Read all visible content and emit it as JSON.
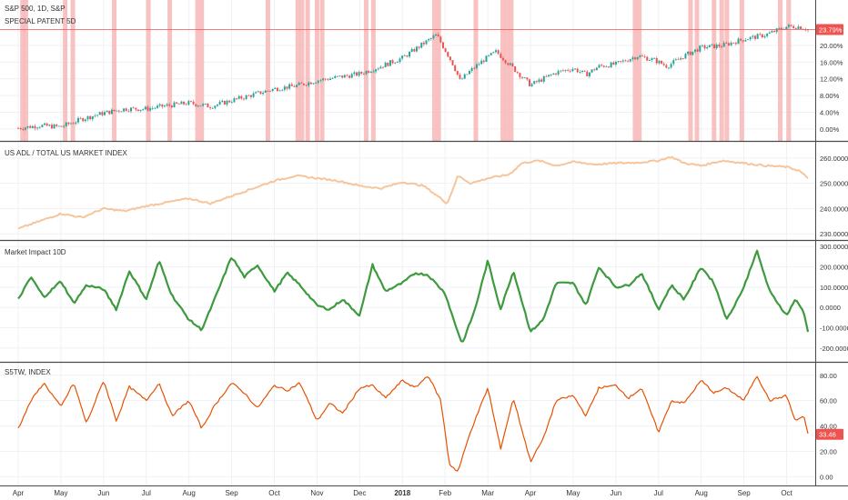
{
  "colors": {
    "highlight": "#f7b7b9",
    "candle_up": "#26a69a",
    "candle_down": "#ef5350",
    "adl": "#f6c59c",
    "impact": "#3e9a3e",
    "s5tw": "#e65100",
    "price_line": "#ef5350",
    "badge": "#ef5350",
    "grid": "#eef1f6",
    "separator": "#4a4a4a"
  },
  "x_axis": {
    "labels": [
      "Apr",
      "May",
      "Jun",
      "Jul",
      "Aug",
      "Sep",
      "Oct",
      "Nov",
      "Dec",
      "2018",
      "Feb",
      "Mar",
      "Apr",
      "May",
      "Jun",
      "Jul",
      "Aug",
      "Sep",
      "Oct"
    ],
    "bold": [
      false,
      false,
      false,
      false,
      false,
      false,
      false,
      false,
      false,
      true,
      false,
      false,
      false,
      false,
      false,
      false,
      false,
      false,
      false
    ]
  },
  "chart_data": [
    {
      "type": "candlestick",
      "title": "S&P 500, 1D, S&P",
      "subtitle": "SPECIAL PATENT 5D",
      "y_ticks": [
        "20.00%",
        "16.00%",
        "12.00%",
        "8.00%",
        "4.00%",
        "0.00%"
      ],
      "ylim": [
        -2,
        30
      ],
      "last_value_label": "23.79%",
      "last_value": 23.79,
      "highlight_events_month_index": [
        0.1,
        0.18,
        1.1,
        1.28,
        2.25,
        3.05,
        3.55,
        4.2,
        4.3,
        5.85,
        6.55,
        6.65,
        6.78,
        7.0,
        7.12,
        8.15,
        8.32,
        9.75,
        9.85,
        10.72,
        11.35,
        11.45,
        11.55,
        14.45,
        14.55,
        15.75,
        15.9,
        16.3,
        16.48,
        16.6,
        16.95,
        17.85,
        18.05
      ],
      "path": [
        [
          0,
          0.2
        ],
        [
          0.5,
          0.8
        ],
        [
          1,
          0.5
        ],
        [
          1.5,
          2.4
        ],
        [
          2,
          3.8
        ],
        [
          2.5,
          4.8
        ],
        [
          3,
          4.8
        ],
        [
          3.5,
          5.6
        ],
        [
          4,
          6.2
        ],
        [
          4.5,
          5.4
        ],
        [
          5,
          6.8
        ],
        [
          5.5,
          8.2
        ],
        [
          6,
          9.6
        ],
        [
          6.5,
          10.3
        ],
        [
          7,
          11.6
        ],
        [
          7.5,
          12.4
        ],
        [
          8,
          13.2
        ],
        [
          8.5,
          15.0
        ],
        [
          9,
          17.0
        ],
        [
          9.5,
          20.5
        ],
        [
          9.8,
          22.5
        ],
        [
          10.05,
          18.0
        ],
        [
          10.2,
          15.2
        ],
        [
          10.35,
          11.5
        ],
        [
          10.6,
          14.0
        ],
        [
          10.9,
          16.5
        ],
        [
          11.2,
          18.5
        ],
        [
          11.5,
          15.5
        ],
        [
          11.8,
          12.5
        ],
        [
          12.0,
          10.5
        ],
        [
          12.3,
          12.0
        ],
        [
          12.6,
          13.5
        ],
        [
          13.0,
          14.5
        ],
        [
          13.3,
          13.0
        ],
        [
          13.6,
          15.0
        ],
        [
          14.0,
          15.5
        ],
        [
          14.5,
          17.5
        ],
        [
          14.9,
          16.5
        ],
        [
          15.2,
          15.0
        ],
        [
          15.6,
          17.5
        ],
        [
          16.0,
          19.5
        ],
        [
          16.5,
          20.0
        ],
        [
          17.0,
          21.5
        ],
        [
          17.5,
          22.5
        ],
        [
          18.0,
          24.5
        ],
        [
          18.3,
          24.5
        ],
        [
          18.5,
          23.8
        ]
      ]
    },
    {
      "type": "line",
      "title": "US ADL / TOTAL US MARKET INDEX",
      "y_ticks": [
        "260.0000",
        "250.0000",
        "240.0000",
        "230.0000"
      ],
      "ylim": [
        229,
        265
      ],
      "path": [
        [
          0,
          232
        ],
        [
          0.5,
          235
        ],
        [
          1,
          238
        ],
        [
          1.5,
          236.5
        ],
        [
          2,
          240
        ],
        [
          2.5,
          239
        ],
        [
          3,
          241
        ],
        [
          3.5,
          242.5
        ],
        [
          4,
          244
        ],
        [
          4.5,
          242
        ],
        [
          5,
          245
        ],
        [
          5.5,
          248
        ],
        [
          6,
          251
        ],
        [
          6.5,
          253
        ],
        [
          7,
          252
        ],
        [
          7.5,
          251
        ],
        [
          8,
          249
        ],
        [
          8.5,
          248
        ],
        [
          9,
          250.5
        ],
        [
          9.5,
          249
        ],
        [
          9.9,
          244
        ],
        [
          10.05,
          242
        ],
        [
          10.3,
          253
        ],
        [
          10.6,
          250
        ],
        [
          11.0,
          252
        ],
        [
          11.5,
          253.5
        ],
        [
          11.8,
          258
        ],
        [
          12.2,
          259
        ],
        [
          12.6,
          257
        ],
        [
          13.0,
          258.5
        ],
        [
          13.5,
          257.5
        ],
        [
          14.0,
          258
        ],
        [
          14.5,
          258.2
        ],
        [
          15.0,
          259
        ],
        [
          15.3,
          260.5
        ],
        [
          15.6,
          258
        ],
        [
          16.0,
          257
        ],
        [
          16.5,
          259
        ],
        [
          17.0,
          258
        ],
        [
          17.5,
          257
        ],
        [
          18.0,
          256.5
        ],
        [
          18.3,
          255
        ],
        [
          18.5,
          252
        ]
      ]
    },
    {
      "type": "line",
      "title": "Market Impact 10D",
      "y_ticks": [
        "300.0000",
        "200.0000",
        "100.0000",
        "0.0000",
        "-100.0000",
        "-200.0000"
      ],
      "ylim": [
        -250,
        310
      ],
      "path": [
        [
          0,
          40
        ],
        [
          0.3,
          150
        ],
        [
          0.6,
          50
        ],
        [
          1,
          130
        ],
        [
          1.3,
          20
        ],
        [
          1.6,
          110
        ],
        [
          2,
          90
        ],
        [
          2.3,
          -10
        ],
        [
          2.6,
          180
        ],
        [
          3,
          40
        ],
        [
          3.3,
          230
        ],
        [
          3.6,
          60
        ],
        [
          4,
          -60
        ],
        [
          4.3,
          -110
        ],
        [
          4.6,
          40
        ],
        [
          5,
          250
        ],
        [
          5.3,
          150
        ],
        [
          5.6,
          210
        ],
        [
          6,
          80
        ],
        [
          6.3,
          170
        ],
        [
          6.6,
          110
        ],
        [
          7,
          10
        ],
        [
          7.3,
          -10
        ],
        [
          7.6,
          40
        ],
        [
          8,
          -40
        ],
        [
          8.3,
          210
        ],
        [
          8.6,
          80
        ],
        [
          9,
          120
        ],
        [
          9.3,
          170
        ],
        [
          9.6,
          160
        ],
        [
          10,
          70
        ],
        [
          10.2,
          -60
        ],
        [
          10.4,
          -180
        ],
        [
          10.7,
          -10
        ],
        [
          11,
          230
        ],
        [
          11.3,
          -10
        ],
        [
          11.6,
          180
        ],
        [
          12,
          -120
        ],
        [
          12.3,
          -60
        ],
        [
          12.6,
          120
        ],
        [
          13,
          120
        ],
        [
          13.3,
          10
        ],
        [
          13.6,
          200
        ],
        [
          14,
          100
        ],
        [
          14.3,
          110
        ],
        [
          14.6,
          170
        ],
        [
          15,
          -10
        ],
        [
          15.3,
          110
        ],
        [
          15.6,
          40
        ],
        [
          16,
          200
        ],
        [
          16.3,
          120
        ],
        [
          16.6,
          -60
        ],
        [
          17,
          100
        ],
        [
          17.3,
          280
        ],
        [
          17.6,
          80
        ],
        [
          18,
          -40
        ],
        [
          18.2,
          40
        ],
        [
          18.4,
          -20
        ],
        [
          18.5,
          -120
        ]
      ]
    },
    {
      "type": "line",
      "title": "S5TW, INDEX",
      "y_ticks": [
        "80.00",
        "60.00",
        "40.00",
        "20.00",
        "0.00"
      ],
      "ylim": [
        -4,
        87
      ],
      "last_value_label": "33.46",
      "last_value": 33.46,
      "path": [
        [
          0,
          38
        ],
        [
          0.3,
          60
        ],
        [
          0.6,
          74
        ],
        [
          1,
          55
        ],
        [
          1.3,
          74
        ],
        [
          1.6,
          42
        ],
        [
          2,
          76
        ],
        [
          2.3,
          44
        ],
        [
          2.6,
          71
        ],
        [
          3,
          60
        ],
        [
          3.3,
          74
        ],
        [
          3.6,
          48
        ],
        [
          4,
          60
        ],
        [
          4.3,
          38
        ],
        [
          4.6,
          56
        ],
        [
          5,
          74
        ],
        [
          5.3,
          66
        ],
        [
          5.6,
          54
        ],
        [
          6,
          72
        ],
        [
          6.3,
          68
        ],
        [
          6.6,
          74
        ],
        [
          7,
          44
        ],
        [
          7.3,
          58
        ],
        [
          7.6,
          50
        ],
        [
          8,
          70
        ],
        [
          8.3,
          72
        ],
        [
          8.6,
          62
        ],
        [
          9,
          76
        ],
        [
          9.3,
          70
        ],
        [
          9.6,
          80
        ],
        [
          9.9,
          60
        ],
        [
          10.1,
          10
        ],
        [
          10.3,
          4
        ],
        [
          10.6,
          36
        ],
        [
          11,
          70
        ],
        [
          11.3,
          22
        ],
        [
          11.6,
          62
        ],
        [
          12,
          12
        ],
        [
          12.3,
          30
        ],
        [
          12.6,
          60
        ],
        [
          13,
          64
        ],
        [
          13.3,
          48
        ],
        [
          13.6,
          70
        ],
        [
          14,
          72
        ],
        [
          14.3,
          62
        ],
        [
          14.6,
          70
        ],
        [
          15,
          35
        ],
        [
          15.3,
          60
        ],
        [
          15.6,
          58
        ],
        [
          16,
          76
        ],
        [
          16.3,
          66
        ],
        [
          16.6,
          70
        ],
        [
          17,
          60
        ],
        [
          17.3,
          80
        ],
        [
          17.6,
          60
        ],
        [
          18,
          64
        ],
        [
          18.2,
          44
        ],
        [
          18.4,
          48
        ],
        [
          18.5,
          34
        ]
      ]
    }
  ]
}
